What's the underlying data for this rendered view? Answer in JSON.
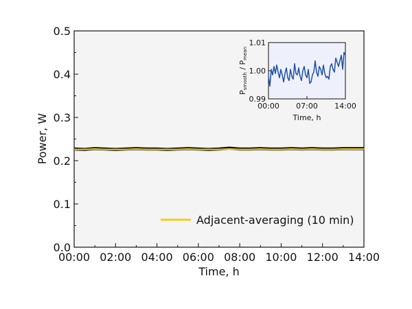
{
  "colors": {
    "plot_background": "#f4f4f4",
    "raw_line": "#111111",
    "smooth_line": "#f2cc1a",
    "inset_background": "#eef1fb",
    "inset_line": "#1f4fa8"
  },
  "chart_data": [
    {
      "type": "line",
      "title": "",
      "xlabel": "Time, h",
      "ylabel": "Power, W",
      "x_tick_labels": [
        "00:00",
        "02:00",
        "04:00",
        "06:00",
        "08:00",
        "10:00",
        "12:00",
        "14:00"
      ],
      "y_tick_labels": [
        "0.0",
        "0.1",
        "0.2",
        "0.3",
        "0.4",
        "0.5"
      ],
      "xlim": [
        0,
        14
      ],
      "ylim": [
        0,
        0.5
      ],
      "legend_position": "bottom-right",
      "series": [
        {
          "name": "",
          "style": "raw",
          "x": [
            0,
            0.5,
            1,
            1.5,
            2,
            2.5,
            3,
            3.5,
            4,
            4.5,
            5,
            5.5,
            6,
            6.5,
            7,
            7.5,
            8,
            8.5,
            9,
            9.5,
            10,
            10.5,
            11,
            11.5,
            12,
            12.5,
            13,
            13.5,
            14
          ],
          "y": [
            0.227,
            0.226,
            0.228,
            0.227,
            0.226,
            0.227,
            0.228,
            0.227,
            0.227,
            0.226,
            0.227,
            0.228,
            0.227,
            0.226,
            0.227,
            0.229,
            0.227,
            0.227,
            0.228,
            0.227,
            0.227,
            0.228,
            0.227,
            0.228,
            0.227,
            0.227,
            0.228,
            0.228,
            0.228
          ]
        },
        {
          "name": "Adjacent-averaging (10 min)",
          "style": "smooth",
          "x": [
            0,
            0.5,
            1,
            1.5,
            2,
            2.5,
            3,
            3.5,
            4,
            4.5,
            5,
            5.5,
            6,
            6.5,
            7,
            7.5,
            8,
            8.5,
            9,
            9.5,
            10,
            10.5,
            11,
            11.5,
            12,
            12.5,
            13,
            13.5,
            14
          ],
          "y": [
            0.226,
            0.226,
            0.227,
            0.226,
            0.226,
            0.226,
            0.227,
            0.226,
            0.226,
            0.226,
            0.226,
            0.227,
            0.226,
            0.226,
            0.226,
            0.227,
            0.226,
            0.226,
            0.227,
            0.226,
            0.226,
            0.227,
            0.226,
            0.227,
            0.226,
            0.226,
            0.227,
            0.227,
            0.227
          ]
        }
      ]
    },
    {
      "type": "line",
      "title": "",
      "xlabel": "Time, h",
      "ylabel_main": "P",
      "ylabel_sub1": "smooth",
      "ylabel_sep": " / P",
      "ylabel_sub2": "mean",
      "x_tick_labels": [
        "00:00",
        "07:00",
        "14:00"
      ],
      "y_tick_labels": [
        "0.99",
        "1.00",
        "1.01"
      ],
      "xlim": [
        0,
        14
      ],
      "ylim": [
        0.99,
        1.01
      ],
      "series": [
        {
          "name": "",
          "x": [
            0,
            0.25,
            0.5,
            0.75,
            1,
            1.25,
            1.5,
            1.75,
            2,
            2.25,
            2.5,
            2.75,
            3,
            3.25,
            3.5,
            3.75,
            4,
            4.25,
            4.5,
            4.75,
            5,
            5.25,
            5.5,
            5.75,
            6,
            6.25,
            6.5,
            6.75,
            7,
            7.25,
            7.5,
            7.75,
            8,
            8.25,
            8.5,
            8.75,
            9,
            9.25,
            9.5,
            9.75,
            10,
            10.25,
            10.5,
            10.75,
            11,
            11.25,
            11.5,
            11.75,
            12,
            12.25,
            12.5,
            12.75,
            13,
            13.25,
            13.5,
            13.75,
            14
          ],
          "y": [
            0.998,
            0.9945,
            1.0005,
            0.9985,
            1.0015,
            0.999,
            1.002,
            0.9995,
            0.9975,
            1.0005,
            0.9985,
            0.996,
            0.999,
            1.001,
            0.9975,
            0.9965,
            1.0005,
            0.998,
            0.997,
            1.0025,
            0.999,
            0.9985,
            1.001,
            0.998,
            0.9965,
            1.0,
            1.0015,
            0.9985,
            0.9975,
            1.0005,
            0.9955,
            0.996,
            0.9985,
            0.9995,
            1.0035,
            0.9995,
            0.998,
            1.0015,
            1.0005,
            0.9985,
            1.002,
            0.999,
            0.9975,
            0.998,
            0.997,
            1.0015,
            1.0025,
            1.0005,
            0.9995,
            1.0045,
            1.003,
            1.0015,
            1.0035,
            1.0055,
            1.0005,
            1.0065,
            1.0055
          ]
        }
      ]
    }
  ]
}
